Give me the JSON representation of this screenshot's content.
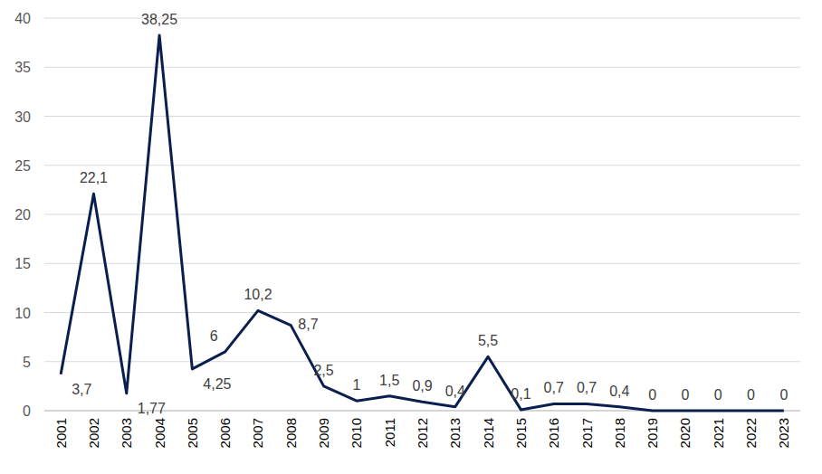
{
  "chart_data": {
    "type": "line",
    "categories": [
      "2001",
      "2002",
      "2003",
      "2004",
      "2005",
      "2006",
      "2007",
      "2008",
      "2009",
      "2010",
      "2011",
      "2012",
      "2013",
      "2014",
      "2015",
      "2016",
      "2017",
      "2018",
      "2019",
      "2020",
      "2021",
      "2022",
      "2023"
    ],
    "values": [
      3.7,
      22.1,
      1.77,
      38.25,
      4.25,
      6,
      10.2,
      8.7,
      2.5,
      1,
      1.5,
      0.9,
      0.4,
      5.5,
      0.1,
      0.7,
      0.7,
      0.4,
      0,
      0,
      0,
      0,
      0
    ],
    "value_labels": [
      "3,7",
      "22,1",
      "1,77",
      "38,25",
      "4,25",
      "6",
      "10,2",
      "8,7",
      "2,5",
      "1",
      "1,5",
      "0,9",
      "0,4",
      "5,5",
      "0,1",
      "0,7",
      "0,7",
      "0,4",
      "0",
      "0",
      "0",
      "0",
      "0"
    ],
    "color": "#0b1f4f",
    "ylim": [
      0,
      40
    ],
    "yticks": [
      0,
      5,
      10,
      15,
      20,
      25,
      30,
      35,
      40
    ],
    "grid": true,
    "data_labels": true
  }
}
